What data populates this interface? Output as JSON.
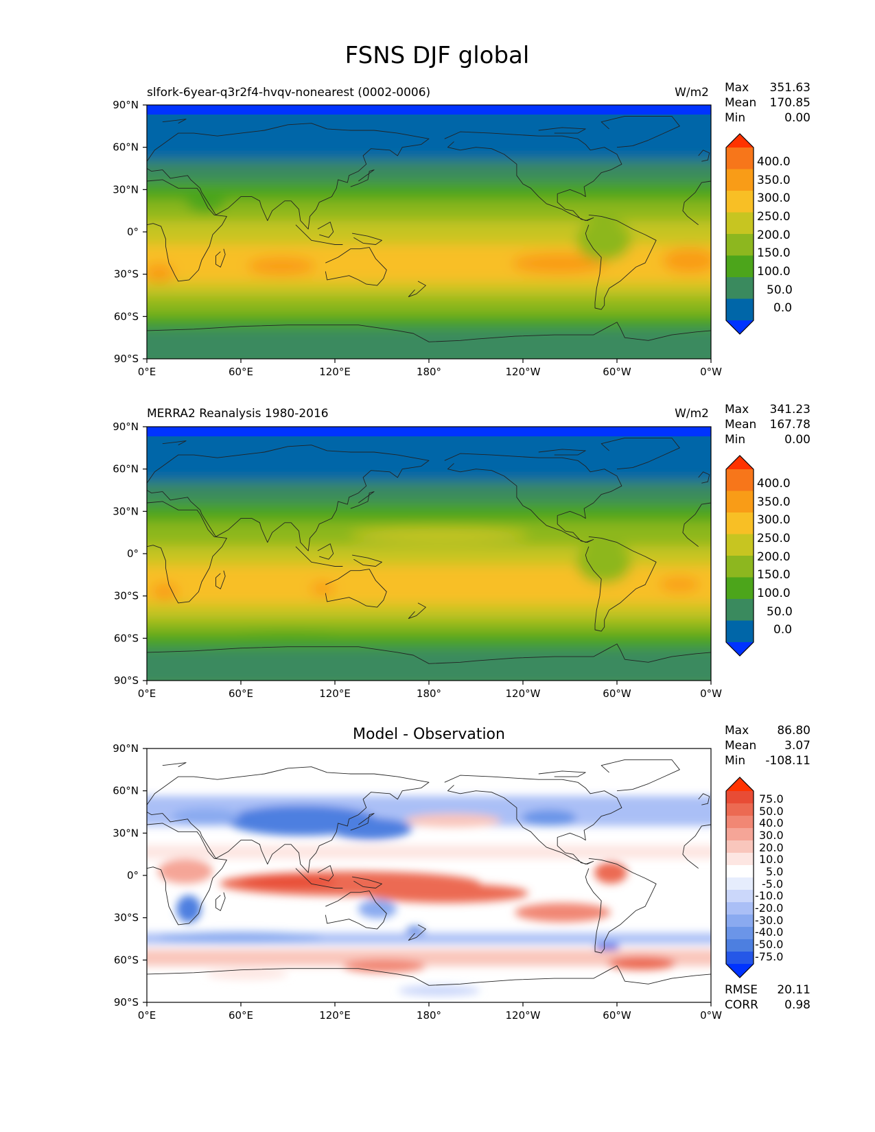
{
  "title": "FSNS DJF global",
  "x_ticks": [
    "0°E",
    "60°E",
    "120°E",
    "180°",
    "120°W",
    "60°W",
    "0°W"
  ],
  "y_ticks": [
    "90°N",
    "60°N",
    "30°N",
    "0°",
    "30°S",
    "60°S",
    "90°S"
  ],
  "colors": {
    "field": [
      "#0033ff",
      "#0066a8",
      "#3a8a5e",
      "#4ca51b",
      "#8db71f",
      "#c7c521",
      "#f8bf25",
      "#f99c17",
      "#f7761a",
      "#ff3300"
    ],
    "diff": [
      "#0033ff",
      "#2557e8",
      "#4d7fe0",
      "#6b95e8",
      "#8aaaf0",
      "#aabff6",
      "#cbd7fa",
      "#e6edfd",
      "#ffffff",
      "#fde6e2",
      "#f9c6bc",
      "#f5a597",
      "#f18774",
      "#ec6a52",
      "#e84c35",
      "#ff3300"
    ],
    "coast": "#222222"
  },
  "panels": [
    {
      "id": "model",
      "title_left": "slfork-6year-q3r2f4-hvqv-nonearest (0002-0006)",
      "title_center": "",
      "units": "W/m2",
      "stats": [
        {
          "label": "Max",
          "value": "351.63"
        },
        {
          "label": "Mean",
          "value": "170.85"
        },
        {
          "label": "Min",
          "value": "0.00"
        }
      ],
      "colorbar_labels": [
        "400.0",
        "350.0",
        "300.0",
        "250.0",
        "200.0",
        "150.0",
        "100.0",
        "50.0",
        "0.0"
      ]
    },
    {
      "id": "obs",
      "title_left": "MERRA2 Reanalysis 1980-2016",
      "title_center": "",
      "units": "W/m2",
      "stats": [
        {
          "label": "Max",
          "value": "341.23"
        },
        {
          "label": "Mean",
          "value": "167.78"
        },
        {
          "label": "Min",
          "value": "0.00"
        }
      ],
      "colorbar_labels": [
        "400.0",
        "350.0",
        "300.0",
        "250.0",
        "200.0",
        "150.0",
        "100.0",
        "50.0",
        "0.0"
      ]
    },
    {
      "id": "diff",
      "title_left": "",
      "title_center": "Model - Observation",
      "units": "",
      "stats": [
        {
          "label": "Max",
          "value": "86.80"
        },
        {
          "label": "Mean",
          "value": "3.07"
        },
        {
          "label": "Min",
          "value": "-108.11"
        }
      ],
      "colorbar_labels": [
        "75.0",
        "50.0",
        "40.0",
        "30.0",
        "20.0",
        "10.0",
        "5.0",
        "-5.0",
        "-10.0",
        "-20.0",
        "-30.0",
        "-40.0",
        "-50.0",
        "-75.0"
      ],
      "footer": [
        {
          "label": "RMSE",
          "value": "20.11"
        },
        {
          "label": "CORR",
          "value": "0.98"
        }
      ]
    }
  ]
}
